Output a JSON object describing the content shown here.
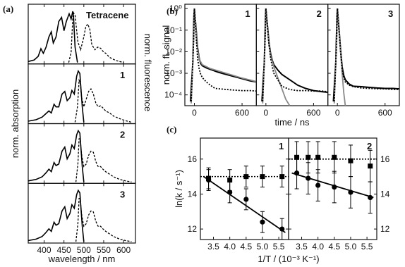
{
  "chart_data": [
    {
      "panel": "(a)",
      "type": "line",
      "xlabel": "wavelength / nm",
      "ylabel_left": "norm. absorption",
      "ylabel_right": "norm. fluorescence",
      "xlim": [
        360,
        630
      ],
      "xticks": [
        400,
        450,
        500,
        550,
        600
      ],
      "subpanels": [
        {
          "label": "Tetracene",
          "absorption": {
            "x": [
              360,
              375,
              385,
              392,
              398,
              405,
              412,
              418,
              423,
              430,
              437,
              444,
              450,
              456,
              463,
              468,
              472,
              474,
              478,
              484
            ],
            "y": [
              0.02,
              0.05,
              0.12,
              0.27,
              0.18,
              0.3,
              0.5,
              0.6,
              0.38,
              0.5,
              0.8,
              0.88,
              0.62,
              0.8,
              0.95,
              0.85,
              1.0,
              0.9,
              0.3,
              0.0
            ]
          },
          "fluorescence": {
            "x": [
              462,
              468,
              472,
              474,
              478,
              485,
              492,
              500,
              505,
              510,
              515,
              520,
              528,
              535,
              542,
              548,
              555,
              565,
              580,
              600
            ],
            "y": [
              0.0,
              0.2,
              0.85,
              0.97,
              0.92,
              0.4,
              0.25,
              0.5,
              0.7,
              0.75,
              0.65,
              0.35,
              0.25,
              0.3,
              0.28,
              0.22,
              0.18,
              0.1,
              0.04,
              0.0
            ]
          }
        },
        {
          "label": "1",
          "absorption": {
            "x": [
              360,
              380,
              395,
              405,
              412,
              418,
              425,
              430,
              437,
              445,
              452,
              458,
              465,
              470,
              476,
              482,
              486,
              490,
              496,
              500
            ],
            "y": [
              0.02,
              0.05,
              0.1,
              0.17,
              0.22,
              0.18,
              0.35,
              0.3,
              0.3,
              0.55,
              0.6,
              0.42,
              0.48,
              0.62,
              0.55,
              0.9,
              1.0,
              0.95,
              0.3,
              0.0
            ]
          },
          "fluorescence": {
            "x": [
              478,
              484,
              488,
              491,
              494,
              500,
              506,
              512,
              518,
              524,
              530,
              536,
              542,
              548,
              555,
              565,
              575,
              590,
              605,
              620
            ],
            "y": [
              0.0,
              0.3,
              0.82,
              0.78,
              0.5,
              0.3,
              0.45,
              0.6,
              0.65,
              0.55,
              0.38,
              0.3,
              0.32,
              0.28,
              0.22,
              0.18,
              0.12,
              0.07,
              0.03,
              0.0
            ]
          }
        },
        {
          "label": "2",
          "absorption": {
            "x": [
              360,
              380,
              395,
              405,
              412,
              418,
              425,
              430,
              437,
              445,
              452,
              458,
              465,
              470,
              476,
              482,
              486,
              490,
              496,
              500
            ],
            "y": [
              0.02,
              0.05,
              0.1,
              0.18,
              0.25,
              0.2,
              0.38,
              0.32,
              0.35,
              0.6,
              0.68,
              0.45,
              0.55,
              0.72,
              0.65,
              0.92,
              1.0,
              0.95,
              0.3,
              0.0
            ]
          },
          "fluorescence": {
            "x": [
              480,
              485,
              488,
              491,
              495,
              500,
              506,
              512,
              518,
              524,
              530,
              536,
              542,
              548,
              555,
              565,
              575,
              590,
              605,
              620
            ],
            "y": [
              0.0,
              0.35,
              0.85,
              0.8,
              0.5,
              0.3,
              0.35,
              0.52,
              0.6,
              0.58,
              0.4,
              0.3,
              0.3,
              0.25,
              0.2,
              0.15,
              0.1,
              0.05,
              0.02,
              0.0
            ]
          }
        },
        {
          "label": "3",
          "absorption": {
            "x": [
              360,
              380,
              395,
              405,
              412,
              418,
              425,
              430,
              437,
              445,
              452,
              458,
              465,
              470,
              476,
              482,
              486,
              490,
              496,
              500
            ],
            "y": [
              0.02,
              0.05,
              0.1,
              0.18,
              0.25,
              0.2,
              0.38,
              0.32,
              0.35,
              0.6,
              0.68,
              0.45,
              0.55,
              0.72,
              0.65,
              0.92,
              1.0,
              0.95,
              0.3,
              0.0
            ]
          },
          "fluorescence": {
            "x": [
              480,
              485,
              488,
              491,
              495,
              500,
              506,
              512,
              518,
              524,
              530,
              536,
              542,
              548,
              555,
              565,
              575,
              590,
              605,
              620
            ],
            "y": [
              0.0,
              0.35,
              0.85,
              0.8,
              0.5,
              0.3,
              0.35,
              0.52,
              0.6,
              0.58,
              0.4,
              0.3,
              0.3,
              0.25,
              0.2,
              0.15,
              0.1,
              0.05,
              0.02,
              0.0
            ]
          }
        }
      ]
    },
    {
      "panel": "(b)",
      "type": "line",
      "xlabel": "time / ns",
      "ylabel": "norm. fl. signal",
      "yscale": "log",
      "ylim_exp": [
        -4.5,
        0.2
      ],
      "yticks": [
        "10⁰",
        "10⁻¹",
        "10⁻²",
        "10⁻³",
        "10⁻⁴"
      ],
      "ytick_exp": [
        0,
        -1,
        -2,
        -3,
        -4
      ],
      "xlim": [
        -120,
        780
      ],
      "xticks": [
        0,
        600
      ],
      "subpanels": [
        {
          "label": "1",
          "solid": {
            "x": [
              -50,
              -20,
              -5,
              0,
              20,
              40,
              60,
              80,
              100,
              150,
              200,
              300,
              400,
              500,
              600,
              700,
              780
            ],
            "logy": [
              -4.3,
              -2.5,
              -0.3,
              0,
              -0.9,
              -1.8,
              -2.3,
              -2.55,
              -2.65,
              -2.75,
              -2.82,
              -2.95,
              -3.05,
              -3.15,
              -3.25,
              -3.35,
              -3.4
            ]
          },
          "fit": {
            "x": [
              -40,
              -10,
              0,
              20,
              40,
              60,
              100,
              200,
              400,
              600,
              780
            ],
            "logy": [
              -4.4,
              -1.5,
              0,
              -1.0,
              -1.9,
              -2.35,
              -2.6,
              -2.78,
              -3.0,
              -3.22,
              -3.38
            ]
          },
          "dotted": {
            "x": [
              -40,
              -10,
              0,
              20,
              40,
              60,
              80,
              100,
              150,
              200,
              260,
              320,
              400,
              500,
              600,
              700,
              780
            ],
            "logy": [
              -4.3,
              -1.5,
              0,
              -1.2,
              -2.3,
              -2.8,
              -3.05,
              -3.2,
              -3.4,
              -3.55,
              -3.7,
              -3.72,
              -3.75,
              -3.78,
              -3.8,
              -3.8,
              -3.82
            ]
          }
        },
        {
          "label": "2",
          "solid": {
            "x": [
              -50,
              -20,
              -5,
              0,
              20,
              40,
              60,
              80,
              100,
              150,
              200,
              300,
              400,
              500,
              600,
              700,
              780
            ],
            "logy": [
              -4.3,
              -2.5,
              -0.3,
              0,
              -0.8,
              -1.6,
              -2.1,
              -2.4,
              -2.6,
              -2.85,
              -3.05,
              -3.3,
              -3.55,
              -3.7,
              -3.8,
              -3.85,
              -3.88
            ]
          },
          "fit": {
            "x": [
              -40,
              -10,
              0,
              20,
              40,
              60,
              100,
              150,
              200,
              250,
              300
            ],
            "logy": [
              -4.4,
              -1.5,
              0,
              -0.9,
              -1.7,
              -2.2,
              -2.7,
              -3.2,
              -3.7,
              -4.2,
              -4.6
            ]
          },
          "dotted": {
            "x": [
              -40,
              -10,
              0,
              20,
              40,
              60,
              80,
              100,
              150,
              200,
              300,
              400,
              500,
              600,
              700,
              780
            ],
            "logy": [
              -4.3,
              -1.5,
              0,
              -0.9,
              -1.7,
              -2.3,
              -2.7,
              -3.0,
              -3.3,
              -3.6,
              -3.75,
              -3.8,
              -3.8,
              -3.82,
              -3.82,
              -3.85
            ]
          }
        },
        {
          "label": "3",
          "solid": {
            "x": [
              -50,
              -20,
              -5,
              0,
              20,
              40,
              60,
              80,
              100,
              150,
              200,
              300,
              400,
              500,
              600,
              700,
              780
            ],
            "logy": [
              -4.3,
              -2.5,
              -0.3,
              0,
              -0.9,
              -1.9,
              -2.7,
              -3.1,
              -3.3,
              -3.5,
              -3.6,
              -3.62,
              -3.65,
              -3.68,
              -3.7,
              -3.7,
              -3.72
            ]
          },
          "fit": {
            "x": [
              -40,
              -10,
              0,
              20,
              40,
              60,
              80,
              100
            ],
            "logy": [
              -4.4,
              -1.5,
              0,
              -1.0,
              -2.0,
              -3.0,
              -3.9,
              -4.6
            ]
          },
          "dotted": {
            "x": [
              -40,
              -10,
              0,
              20,
              40,
              60,
              80,
              100,
              150,
              200,
              300,
              400,
              500,
              600,
              700,
              780
            ],
            "logy": [
              -4.3,
              -1.5,
              0,
              -1.0,
              -2.0,
              -2.8,
              -3.2,
              -3.4,
              -3.55,
              -3.62,
              -3.68,
              -3.7,
              -3.72,
              -3.72,
              -3.75,
              -3.75
            ]
          }
        }
      ]
    },
    {
      "panel": "(c)",
      "type": "scatter",
      "xlabel": "1/T / (10⁻³ K⁻¹)",
      "ylabel": "ln(k / s⁻¹)",
      "ylim": [
        11.4,
        17.2
      ],
      "yticks": [
        12,
        14,
        16
      ],
      "xticks": [
        3.5,
        4.0,
        4.5,
        5.0,
        5.5
      ],
      "xticklabels": [
        "3.5",
        "4.0",
        "4.5",
        "5.0",
        "5.5"
      ],
      "subpanels": [
        {
          "label": "1",
          "xlim": [
            3.1,
            5.8
          ],
          "squares": [
            {
              "x": 3.35,
              "y": 14.9,
              "err": 0.6
            },
            {
              "x": 4.0,
              "y": 14.8,
              "err": 0.6
            },
            {
              "x": 4.5,
              "y": 15.0,
              "err": 0.6
            },
            {
              "x": 5.0,
              "y": 15.0,
              "err": 0.6
            },
            {
              "x": 5.6,
              "y": 15.0,
              "err": 0.6
            }
          ],
          "circles": [
            {
              "x": 3.35,
              "y": 14.8,
              "err": 0.6
            },
            {
              "x": 4.0,
              "y": 14.1,
              "err": 0.6
            },
            {
              "x": 4.5,
              "y": 13.7,
              "err": 0.6
            },
            {
              "x": 5.0,
              "y": 12.4,
              "err": 0.6
            },
            {
              "x": 5.6,
              "y": 12.0,
              "err": 0.6
            }
          ],
          "dotted_level": 15.0,
          "fit_line": {
            "x": [
              3.2,
              5.7
            ],
            "y": [
              15.0,
              11.8
            ]
          }
        },
        {
          "label": "2",
          "xlim": [
            3.1,
            5.8
          ],
          "squares": [
            {
              "x": 3.35,
              "y": 16.1,
              "err": 0.9
            },
            {
              "x": 3.7,
              "y": 16.1,
              "err": 0.9
            },
            {
              "x": 4.0,
              "y": 16.1,
              "err": 0.9
            },
            {
              "x": 4.5,
              "y": 16.1,
              "err": 0.9
            },
            {
              "x": 5.0,
              "y": 15.9,
              "err": 0.9
            },
            {
              "x": 5.6,
              "y": 15.6,
              "err": 0.9
            }
          ],
          "circles": [
            {
              "x": 3.35,
              "y": 15.2,
              "err": 0.9
            },
            {
              "x": 3.7,
              "y": 14.9,
              "err": 0.9
            },
            {
              "x": 4.0,
              "y": 14.5,
              "err": 0.9
            },
            {
              "x": 4.5,
              "y": 14.4,
              "err": 0.9
            },
            {
              "x": 5.0,
              "y": 14.1,
              "err": 0.9
            },
            {
              "x": 5.6,
              "y": 13.8,
              "err": 0.9
            }
          ],
          "dotted_level": 16.0,
          "fit_line": {
            "x": [
              3.2,
              5.7
            ],
            "y": [
              15.2,
              13.8
            ]
          }
        }
      ]
    }
  ]
}
